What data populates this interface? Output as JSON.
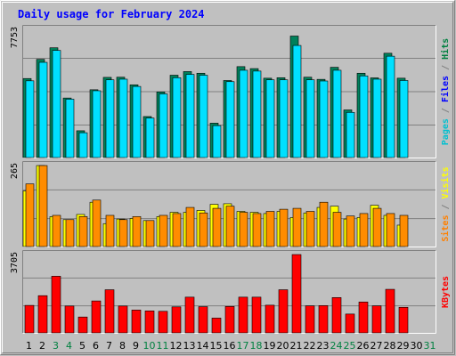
{
  "chart_data": {
    "type": "bar",
    "title": "Daily usage for February 2024",
    "colors": {
      "background": "#c0c0c0",
      "frame_light": "#ffffff",
      "frame_dark": "#808080",
      "gridline": "#808080",
      "hits": "#00805a",
      "files": "#00e0ff",
      "pages": "#00b8c8",
      "visits": "#ffff00",
      "sites": "#ff8c00",
      "kbytes": "#ff0000",
      "weekday_label": "#000000",
      "weekend_label": "#008040",
      "side_pages": "#00c0d0",
      "side_files": "#0000ff",
      "side_hits": "#008040",
      "side_sites": "#ff8000",
      "side_visits": "#ffff00",
      "side_kbytes": "#ff0000"
    },
    "categories": [
      "1",
      "2",
      "3",
      "4",
      "5",
      "6",
      "7",
      "8",
      "9",
      "10",
      "11",
      "12",
      "13",
      "14",
      "15",
      "16",
      "17",
      "18",
      "19",
      "20",
      "21",
      "22",
      "23",
      "24",
      "25",
      "26",
      "27",
      "28",
      "29",
      "30",
      "31"
    ],
    "weekend_days": [
      "3",
      "4",
      "10",
      "11",
      "17",
      "18",
      "24",
      "25",
      "31"
    ],
    "panels": [
      {
        "name": "hits-files-pages",
        "max_label": "7753",
        "ymax": 7753,
        "side_labels": [
          {
            "text": "Pages",
            "color_key": "side_pages"
          },
          {
            "text": " / ",
            "color_key": "frame_dark"
          },
          {
            "text": "Files",
            "color_key": "side_files"
          },
          {
            "text": " / ",
            "color_key": "frame_dark"
          },
          {
            "text": "Hits",
            "color_key": "side_hits"
          }
        ],
        "series": [
          {
            "name": "Hits",
            "color_key": "hits",
            "values": [
              4780,
              5940,
              6640,
              3600,
              1620,
              4100,
              4850,
              4860,
              4400,
              2480,
              3970,
              4980,
              5200,
              5100,
              2080,
              4660,
              5500,
              5380,
              4800,
              4830,
              7350,
              4860,
              4730,
              5460,
              2880,
              5100,
              4820,
              6310,
              4800,
              0,
              0
            ]
          },
          {
            "name": "Files",
            "color_key": "files",
            "values": [
              4640,
              5760,
              6480,
              3530,
              1500,
              4040,
              4700,
              4740,
              4300,
              2390,
              3850,
              4830,
              5030,
              4980,
              1930,
              4590,
              5280,
              5230,
              4700,
              4700,
              6780,
              4700,
              4630,
              5280,
              2730,
              4940,
              4740,
              6130,
              4660,
              0,
              0
            ]
          }
        ]
      },
      {
        "name": "visits-sites",
        "max_label": "265",
        "ymax": 265,
        "side_labels": [
          {
            "text": "Sites",
            "color_key": "side_sites"
          },
          {
            "text": " / ",
            "color_key": "frame_dark"
          },
          {
            "text": "Visits",
            "color_key": "side_visits"
          }
        ],
        "series": [
          {
            "name": "Visits",
            "color_key": "visits",
            "values": [
              182,
              265,
              98,
              88,
              105,
              145,
              75,
              90,
              92,
              85,
              98,
              112,
              112,
              118,
              138,
              140,
              115,
              112,
              108,
              115,
              95,
              110,
              128,
              132,
              90,
              95,
              135,
              102,
              70,
              0,
              0
            ]
          },
          {
            "name": "Sites",
            "color_key": "sites",
            "values": [
              205,
              265,
              102,
              88,
              98,
              152,
              102,
              88,
              98,
              85,
              102,
              108,
              128,
              110,
              125,
              132,
              112,
              108,
              115,
              122,
              125,
              115,
              145,
              112,
              100,
              108,
              125,
              108,
              102,
              0,
              0
            ]
          }
        ]
      },
      {
        "name": "kbytes",
        "max_label": "3705",
        "ymax": 3705,
        "side_labels": [
          {
            "text": "KBytes",
            "color_key": "side_kbytes"
          }
        ],
        "series": [
          {
            "name": "KBytes",
            "color_key": "kbytes",
            "values": [
              1300,
              1760,
              2680,
              1270,
              750,
              1510,
              2040,
              1270,
              1080,
              1040,
              1020,
              1230,
              1690,
              1240,
              700,
              1250,
              1690,
              1690,
              1310,
              2040,
              3705,
              1280,
              1290,
              1670,
              890,
              1460,
              1280,
              2060,
              1210,
              0,
              0
            ]
          }
        ]
      }
    ]
  }
}
